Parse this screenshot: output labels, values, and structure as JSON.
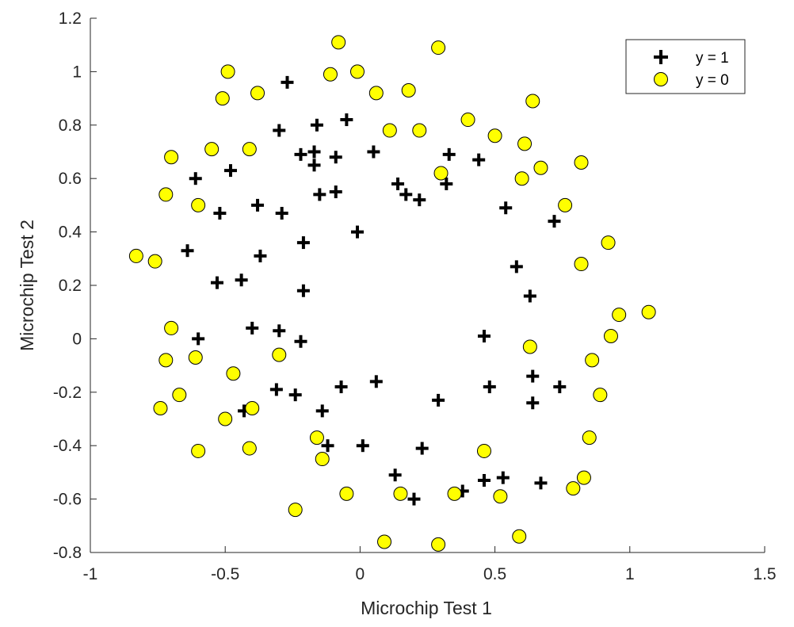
{
  "chart_data": {
    "type": "scatter",
    "title": "",
    "xlabel": "Microchip Test 1",
    "ylabel": "Microchip Test 2",
    "xlim": [
      -1,
      1.5
    ],
    "ylim": [
      -0.8,
      1.2
    ],
    "xticks": [
      -1,
      -0.5,
      0,
      0.5,
      1,
      1.5
    ],
    "xtick_labels": [
      "-1",
      "-0.5",
      "0",
      "0.5",
      "1",
      "1.5"
    ],
    "yticks": [
      -0.8,
      -0.6,
      -0.4,
      -0.2,
      0,
      0.2,
      0.4,
      0.6,
      0.8,
      1,
      1.2
    ],
    "ytick_labels": [
      "-0.8",
      "-0.6",
      "-0.4",
      "-0.2",
      "0",
      "0.2",
      "0.4",
      "0.6",
      "0.8",
      "1",
      "1.2"
    ],
    "grid": false,
    "legend_position": "top-right",
    "series": [
      {
        "name": "y = 1",
        "marker": "plus",
        "color": "#000000",
        "points": [
          [
            -0.27,
            0.96
          ],
          [
            -0.3,
            0.78
          ],
          [
            -0.16,
            0.8
          ],
          [
            -0.05,
            0.82
          ],
          [
            -0.22,
            0.69
          ],
          [
            -0.17,
            0.7
          ],
          [
            -0.09,
            0.68
          ],
          [
            -0.17,
            0.65
          ],
          [
            0.05,
            0.7
          ],
          [
            0.33,
            0.69
          ],
          [
            0.44,
            0.67
          ],
          [
            -0.61,
            0.6
          ],
          [
            -0.48,
            0.63
          ],
          [
            0.14,
            0.58
          ],
          [
            0.32,
            0.58
          ],
          [
            -0.15,
            0.54
          ],
          [
            -0.09,
            0.55
          ],
          [
            0.17,
            0.54
          ],
          [
            0.22,
            0.52
          ],
          [
            -0.52,
            0.47
          ],
          [
            -0.38,
            0.5
          ],
          [
            -0.29,
            0.47
          ],
          [
            0.54,
            0.49
          ],
          [
            0.72,
            0.44
          ],
          [
            -0.01,
            0.4
          ],
          [
            -0.21,
            0.36
          ],
          [
            -0.64,
            0.33
          ],
          [
            -0.37,
            0.31
          ],
          [
            -0.53,
            0.21
          ],
          [
            -0.44,
            0.22
          ],
          [
            0.58,
            0.27
          ],
          [
            -0.21,
            0.18
          ],
          [
            0.63,
            0.16
          ],
          [
            -0.6,
            0.0
          ],
          [
            -0.4,
            0.04
          ],
          [
            -0.3,
            0.03
          ],
          [
            -0.22,
            -0.01
          ],
          [
            0.46,
            0.01
          ],
          [
            -0.31,
            -0.19
          ],
          [
            -0.24,
            -0.21
          ],
          [
            -0.07,
            -0.18
          ],
          [
            0.06,
            -0.16
          ],
          [
            0.29,
            -0.23
          ],
          [
            0.48,
            -0.18
          ],
          [
            0.64,
            -0.14
          ],
          [
            0.74,
            -0.18
          ],
          [
            0.64,
            -0.24
          ],
          [
            -0.43,
            -0.27
          ],
          [
            -0.14,
            -0.27
          ],
          [
            -0.12,
            -0.4
          ],
          [
            0.01,
            -0.4
          ],
          [
            0.23,
            -0.41
          ],
          [
            0.13,
            -0.51
          ],
          [
            0.2,
            -0.6
          ],
          [
            0.38,
            -0.57
          ],
          [
            0.46,
            -0.53
          ],
          [
            0.53,
            -0.52
          ],
          [
            0.67,
            -0.54
          ]
        ]
      },
      {
        "name": "y = 0",
        "marker": "circle",
        "color": "#ffff00",
        "points": [
          [
            -0.08,
            1.11
          ],
          [
            0.29,
            1.09
          ],
          [
            -0.49,
            1.0
          ],
          [
            -0.11,
            0.99
          ],
          [
            -0.01,
            1.0
          ],
          [
            -0.51,
            0.9
          ],
          [
            -0.38,
            0.92
          ],
          [
            0.06,
            0.92
          ],
          [
            0.18,
            0.93
          ],
          [
            0.64,
            0.89
          ],
          [
            0.4,
            0.82
          ],
          [
            0.11,
            0.78
          ],
          [
            0.22,
            0.78
          ],
          [
            0.5,
            0.76
          ],
          [
            0.61,
            0.73
          ],
          [
            -0.7,
            0.68
          ],
          [
            -0.55,
            0.71
          ],
          [
            -0.41,
            0.71
          ],
          [
            0.82,
            0.66
          ],
          [
            0.67,
            0.64
          ],
          [
            0.3,
            0.62
          ],
          [
            0.6,
            0.6
          ],
          [
            -0.72,
            0.54
          ],
          [
            -0.6,
            0.5
          ],
          [
            0.76,
            0.5
          ],
          [
            0.92,
            0.36
          ],
          [
            -0.83,
            0.31
          ],
          [
            -0.76,
            0.29
          ],
          [
            0.82,
            0.28
          ],
          [
            1.07,
            0.1
          ],
          [
            0.96,
            0.09
          ],
          [
            -0.7,
            0.04
          ],
          [
            0.93,
            0.01
          ],
          [
            -0.72,
            -0.08
          ],
          [
            -0.61,
            -0.07
          ],
          [
            -0.3,
            -0.06
          ],
          [
            0.63,
            -0.03
          ],
          [
            0.86,
            -0.08
          ],
          [
            -0.47,
            -0.13
          ],
          [
            -0.67,
            -0.21
          ],
          [
            0.89,
            -0.21
          ],
          [
            -0.74,
            -0.26
          ],
          [
            -0.5,
            -0.3
          ],
          [
            -0.4,
            -0.26
          ],
          [
            -0.16,
            -0.37
          ],
          [
            -0.14,
            -0.45
          ],
          [
            0.85,
            -0.37
          ],
          [
            -0.6,
            -0.42
          ],
          [
            -0.41,
            -0.41
          ],
          [
            0.46,
            -0.42
          ],
          [
            -0.05,
            -0.58
          ],
          [
            0.15,
            -0.58
          ],
          [
            0.35,
            -0.58
          ],
          [
            0.52,
            -0.59
          ],
          [
            0.79,
            -0.56
          ],
          [
            0.83,
            -0.52
          ],
          [
            -0.24,
            -0.64
          ],
          [
            0.09,
            -0.76
          ],
          [
            0.29,
            -0.77
          ],
          [
            0.59,
            -0.74
          ]
        ]
      }
    ]
  }
}
